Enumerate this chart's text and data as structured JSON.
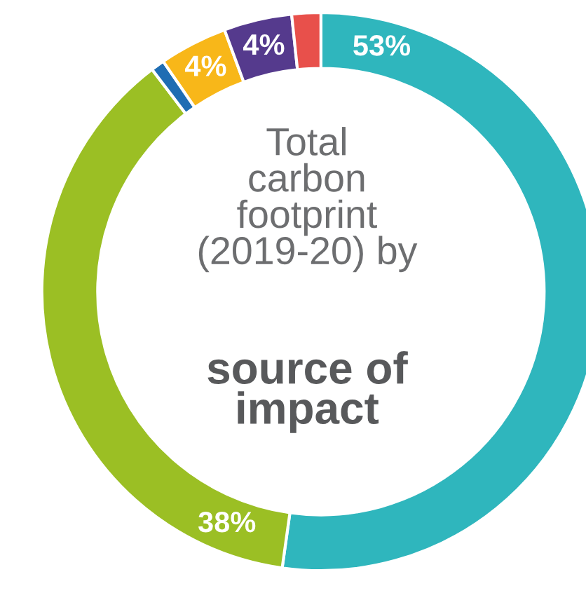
{
  "chart_data": {
    "type": "donut",
    "title": "Total\ncarbon\nfootprint\n(2019-20) by",
    "subtitle": "source of\nimpact",
    "categories": [
      null,
      null,
      null,
      null,
      null,
      null
    ],
    "values": [
      53,
      38,
      0.8,
      4,
      4,
      1.7
    ],
    "value_labels": [
      "53%",
      "38%",
      null,
      "4%",
      "4%",
      null
    ],
    "colors": [
      "#2fb6bd",
      "#9bbf24",
      "#1f6db3",
      "#f8b719",
      "#553a8d",
      "#e8504b"
    ],
    "legend": false
  }
}
